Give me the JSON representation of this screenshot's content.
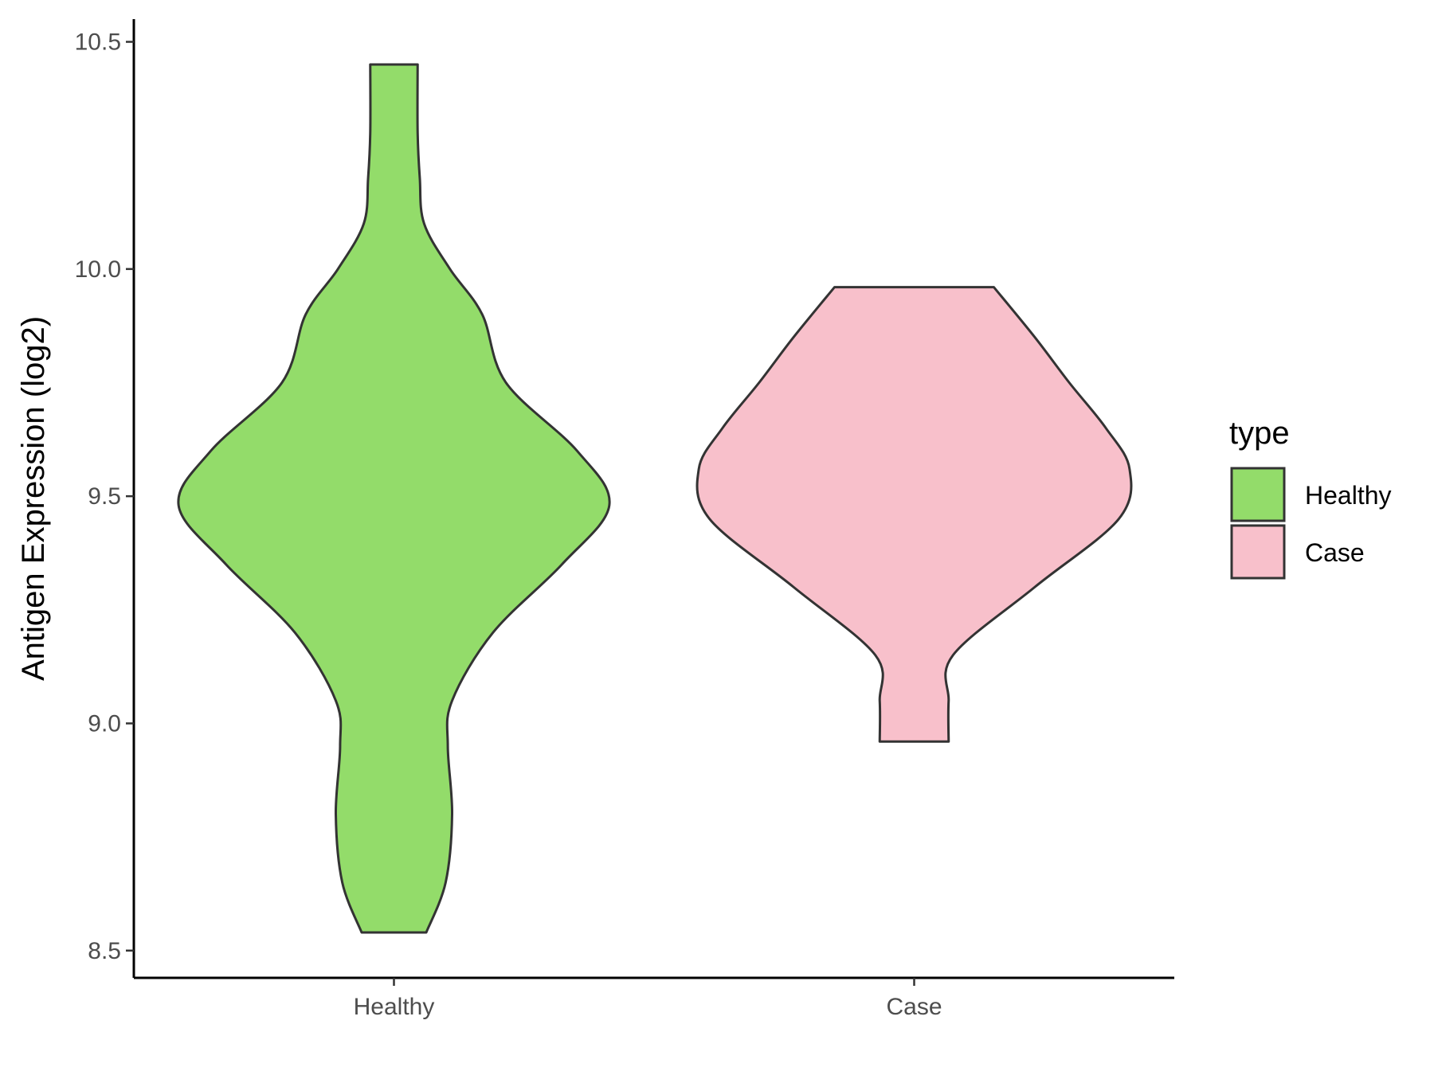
{
  "chart_data": {
    "type": "violin",
    "title": "",
    "xlabel": "",
    "ylabel": "Antigen Expression (log2)",
    "ylim": [
      8.44,
      10.55
    ],
    "y_ticks": [
      8.5,
      9.0,
      9.5,
      10.0,
      10.5
    ],
    "y_tick_labels": [
      "8.5",
      "9.0",
      "9.5",
      "10.0",
      "10.5"
    ],
    "categories": [
      "Healthy",
      "Case"
    ],
    "grid": false,
    "legend": {
      "title": "type",
      "position": "right",
      "entries": [
        "Healthy",
        "Case"
      ]
    },
    "series": [
      {
        "name": "Healthy",
        "color": "#93DC6A",
        "y_min": 8.54,
        "y_max": 10.45,
        "density_profile": [
          [
            8.54,
            0.15
          ],
          [
            8.65,
            0.24
          ],
          [
            8.8,
            0.27
          ],
          [
            8.95,
            0.25
          ],
          [
            9.05,
            0.27
          ],
          [
            9.2,
            0.46
          ],
          [
            9.35,
            0.78
          ],
          [
            9.48,
            1.0
          ],
          [
            9.6,
            0.85
          ],
          [
            9.75,
            0.52
          ],
          [
            9.9,
            0.41
          ],
          [
            10.0,
            0.26
          ],
          [
            10.1,
            0.14
          ],
          [
            10.2,
            0.12
          ],
          [
            10.3,
            0.11
          ],
          [
            10.45,
            0.11
          ]
        ]
      },
      {
        "name": "Case",
        "color": "#F8C0CB",
        "y_min": 8.96,
        "y_max": 9.96,
        "density_profile": [
          [
            8.96,
            0.16
          ],
          [
            9.05,
            0.16
          ],
          [
            9.15,
            0.18
          ],
          [
            9.3,
            0.56
          ],
          [
            9.45,
            0.95
          ],
          [
            9.56,
            1.0
          ],
          [
            9.65,
            0.89
          ],
          [
            9.75,
            0.72
          ],
          [
            9.85,
            0.56
          ],
          [
            9.96,
            0.37
          ]
        ]
      }
    ]
  }
}
